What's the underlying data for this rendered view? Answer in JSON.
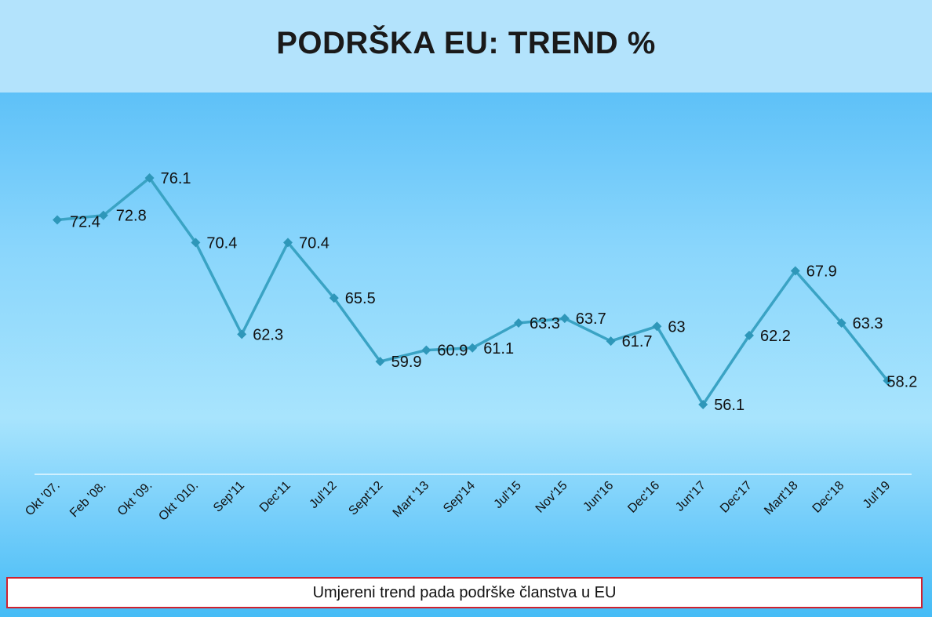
{
  "header": {
    "title": "PODRŠKA EU: TREND %"
  },
  "caption": {
    "text": "Umjereni trend pada podrške članstva u EU"
  },
  "colors": {
    "line": "#3aa3c4",
    "marker": "#2e97b9",
    "axis": "#e8f8ff",
    "caption_border": "#d0212e"
  },
  "chart_data": {
    "type": "line",
    "categories": [
      "Okt '07.",
      "Feb '08.",
      "Okt '09.",
      "Okt '010.",
      "Sep'11",
      "Dec'11",
      "Jul'12",
      "Sept'12",
      "Mart '13",
      "Sep'14",
      "Jul'15",
      "Nov'15",
      "Jun'16",
      "Dec'16",
      "Jun'17",
      "Dec'17",
      "Mart'18",
      "Dec'18",
      "Jul'19"
    ],
    "values": [
      72.4,
      72.8,
      76.1,
      70.4,
      62.3,
      70.4,
      65.5,
      59.9,
      60.9,
      61.1,
      63.3,
      63.7,
      61.7,
      63,
      56.1,
      62.2,
      67.9,
      63.3,
      58.2
    ],
    "labels": [
      "72.4",
      "72.8",
      "76.1",
      "70.4",
      "62.3",
      "70.4",
      "65.5",
      "59.9",
      "60.9",
      "61.1",
      "63.3",
      "63.7",
      "61.7",
      "63",
      "56.1",
      "62.2",
      "67.9",
      "63.3",
      "58.2"
    ],
    "title": "PODRŠKA EU: TREND %",
    "xlabel": "",
    "ylabel": "",
    "ylim": [
      40,
      80
    ],
    "grid": false,
    "legend": "none",
    "marker": "diamond"
  }
}
